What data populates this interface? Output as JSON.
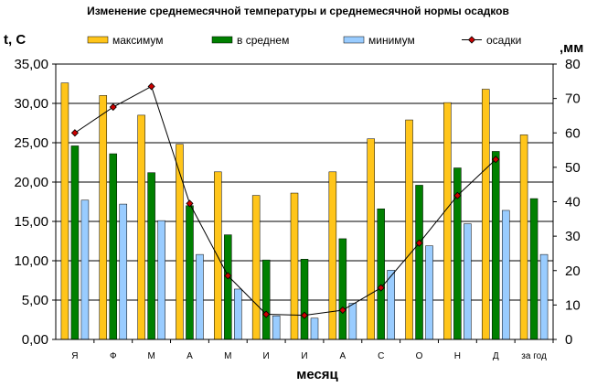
{
  "chart_data": {
    "type": "bar",
    "title": "Изменение среднемесячной температуры и среднемесячной нормы осадков",
    "ylabel_left": "t, C",
    "ylabel_right": ",мм",
    "xlabel": "месяц",
    "categories": [
      "Я",
      "Ф",
      "М",
      "А",
      "М",
      "И",
      "И",
      "А",
      "С",
      "О",
      "Н",
      "Д",
      "за год"
    ],
    "ylim_left": [
      0,
      35
    ],
    "ylim_right": [
      0,
      80
    ],
    "y_ticks_left": [
      "0,00",
      "5,00",
      "10,00",
      "15,00",
      "20,00",
      "25,00",
      "30,00",
      "35,00"
    ],
    "y_ticks_right": [
      "0",
      "10",
      "20",
      "30",
      "40",
      "50",
      "60",
      "70",
      "80"
    ],
    "grid": true,
    "legend_position": "top",
    "series": [
      {
        "name": "максимум",
        "type": "bar",
        "axis": "left",
        "color": "#FFC51A",
        "values": [
          32.6,
          31.0,
          28.5,
          24.8,
          21.3,
          18.3,
          18.6,
          21.3,
          25.5,
          27.9,
          30.1,
          31.8,
          26.0
        ]
      },
      {
        "name": "в среднем",
        "type": "bar",
        "axis": "left",
        "color": "#008000",
        "values": [
          24.6,
          23.6,
          21.2,
          17.0,
          13.3,
          10.1,
          10.2,
          12.8,
          16.6,
          19.6,
          21.8,
          23.9,
          17.9
        ]
      },
      {
        "name": "минимум",
        "type": "bar",
        "axis": "left",
        "color": "#99CCFF",
        "values": [
          17.7,
          17.2,
          15.1,
          10.8,
          6.4,
          3.0,
          2.7,
          4.6,
          8.8,
          11.9,
          14.7,
          16.4,
          10.8
        ]
      },
      {
        "name": "осадки",
        "type": "line",
        "axis": "right",
        "color": "#000000",
        "marker_color": "#CC0000",
        "values": [
          60,
          67.5,
          73.5,
          39.5,
          18.5,
          7.3,
          7.0,
          8.5,
          15.0,
          28.0,
          41.8,
          52.3,
          null
        ]
      }
    ]
  }
}
